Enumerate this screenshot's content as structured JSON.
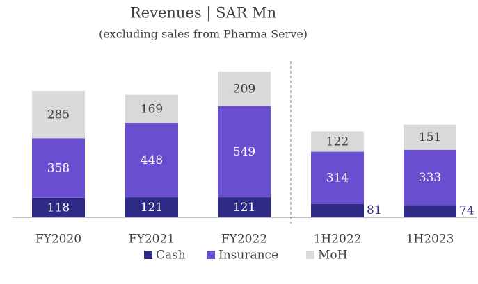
{
  "chart_data": {
    "type": "stacked_bar",
    "title": "Revenues | SAR Mn",
    "subtitle": "(excluding sales from Pharma Serve)",
    "categories": [
      "FY2020",
      "FY2021",
      "FY2022",
      "1H2022",
      "1H2023"
    ],
    "series": [
      {
        "name": "Cash",
        "color": "#2e2a85",
        "values": [
          118,
          121,
          121,
          81,
          74
        ]
      },
      {
        "name": "Insurance",
        "color": "#6a4ed0",
        "values": [
          358,
          448,
          549,
          314,
          333
        ]
      },
      {
        "name": "MoH",
        "color": "#d9d9d9",
        "values": [
          285,
          169,
          209,
          122,
          151
        ]
      }
    ],
    "legend": "bottom"
  }
}
